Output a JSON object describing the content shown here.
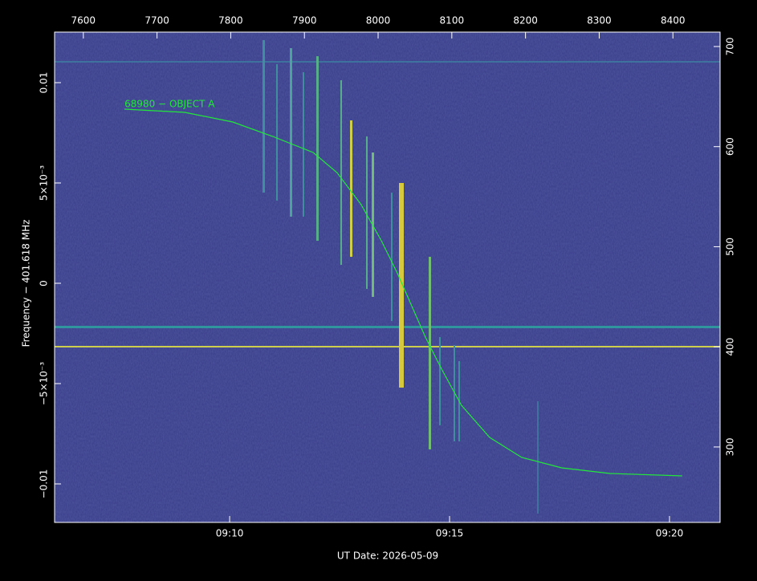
{
  "chart_data": {
    "type": "spectrogram",
    "annotation": "68980 − OBJECT A",
    "xlabel": "UT Date: 2026-05-09",
    "ylabel": "Frequency − 401.618 MHz",
    "xlim": [
      546.02,
      561.15
    ],
    "xticks": [
      {
        "value": 550,
        "label": "09:10"
      },
      {
        "value": 555,
        "label": "09:15"
      },
      {
        "value": 560,
        "label": "09:20"
      }
    ],
    "x2lim": [
      7561,
      8464
    ],
    "x2ticks": [
      7600,
      7700,
      7800,
      7900,
      8000,
      8100,
      8200,
      8300,
      8400
    ],
    "ylim": [
      -0.01192,
      0.01252
    ],
    "yticks": [
      {
        "value": -0.01,
        "label": "−0.01"
      },
      {
        "value": -0.005,
        "label": "−5×10⁻³"
      },
      0,
      {
        "value": 0.005,
        "label": "5×10⁻³"
      },
      0.01
    ],
    "y2lim": [
      224.6,
      714.4
    ],
    "y2ticks": [
      300,
      400,
      500,
      600,
      700
    ],
    "series": [
      {
        "color": "#22e83a",
        "x": [
          547.61,
          548.98,
          550.07,
          550.98,
          551.9,
          552.44,
          552.99,
          553.45,
          553.81,
          554.09,
          554.45,
          554.82,
          555.27,
          555.91,
          556.64,
          557.55,
          558.65,
          560.29
        ],
        "values": [
          0.00868,
          0.00852,
          0.00804,
          0.00732,
          0.00652,
          0.00552,
          0.00392,
          0.00212,
          0.00052,
          -0.00088,
          -0.00268,
          -0.00428,
          -0.00608,
          -0.00768,
          -0.00868,
          -0.0092,
          -0.00948,
          -0.0096
        ]
      }
    ]
  }
}
